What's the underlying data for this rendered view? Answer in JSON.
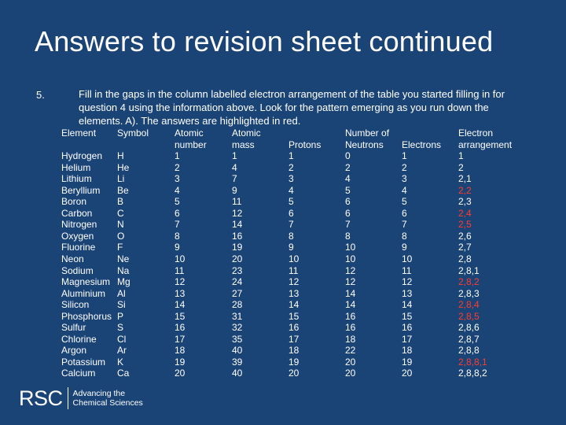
{
  "title": "Answers to revision sheet continued",
  "question": {
    "number": "5.",
    "text": "Fill in the gaps in the column labelled electron arrangement of the table you started filling in for question 4 using the information above.  Look for the pattern emerging as you run down the elements. A). The answers are highlighted in red."
  },
  "table": {
    "headers": {
      "element": "Element",
      "symbol": "Symbol",
      "atomic_number": [
        "Atomic",
        "number"
      ],
      "atomic_mass": [
        "Atomic",
        "mass"
      ],
      "protons": "Protons",
      "neutrons": [
        "Number of",
        "Neutrons"
      ],
      "electrons": "Electrons",
      "arrangement": [
        "Electron",
        "arrangement"
      ]
    },
    "rows": [
      {
        "element": "Hydrogen",
        "symbol": "H",
        "atomic_number": "1",
        "atomic_mass": "1",
        "protons": "1",
        "neutrons": "0",
        "electrons": "1",
        "arrangement": "1",
        "answer": false
      },
      {
        "element": "Helium",
        "symbol": "He",
        "atomic_number": "2",
        "atomic_mass": "4",
        "protons": "2",
        "neutrons": "2",
        "electrons": "2",
        "arrangement": "2",
        "answer": false
      },
      {
        "element": "Lithium",
        "symbol": "Li",
        "atomic_number": "3",
        "atomic_mass": "7",
        "protons": "3",
        "neutrons": "4",
        "electrons": "3",
        "arrangement": "2,1",
        "answer": false
      },
      {
        "element": "Beryllium",
        "symbol": "Be",
        "atomic_number": "4",
        "atomic_mass": "9",
        "protons": "4",
        "neutrons": "5",
        "electrons": "4",
        "arrangement": "2,2",
        "answer": true
      },
      {
        "element": "Boron",
        "symbol": "B",
        "atomic_number": "5",
        "atomic_mass": "11",
        "protons": "5",
        "neutrons": "6",
        "electrons": "5",
        "arrangement": "2,3",
        "answer": false
      },
      {
        "element": "Carbon",
        "symbol": "C",
        "atomic_number": "6",
        "atomic_mass": "12",
        "protons": "6",
        "neutrons": "6",
        "electrons": "6",
        "arrangement": "2,4",
        "answer": true
      },
      {
        "element": "Nitrogen",
        "symbol": "N",
        "atomic_number": "7",
        "atomic_mass": "14",
        "protons": "7",
        "neutrons": "7",
        "electrons": "7",
        "arrangement": "2,5",
        "answer": true
      },
      {
        "element": "Oxygen",
        "symbol": "O",
        "atomic_number": "8",
        "atomic_mass": "16",
        "protons": "8",
        "neutrons": "8",
        "electrons": "8",
        "arrangement": "2,6",
        "answer": false
      },
      {
        "element": "Fluorine",
        "symbol": "F",
        "atomic_number": "9",
        "atomic_mass": "19",
        "protons": "9",
        "neutrons": "10",
        "electrons": "9",
        "arrangement": "2,7",
        "answer": false
      },
      {
        "element": "Neon",
        "symbol": "Ne",
        "atomic_number": "10",
        "atomic_mass": "20",
        "protons": "10",
        "neutrons": "10",
        "electrons": "10",
        "arrangement": "2,8",
        "answer": false
      },
      {
        "element": "Sodium",
        "symbol": "Na",
        "atomic_number": "11",
        "atomic_mass": "23",
        "protons": "11",
        "neutrons": "12",
        "electrons": "11",
        "arrangement": "2,8,1",
        "answer": false
      },
      {
        "element": "Magnesium",
        "symbol": "Mg",
        "atomic_number": "12",
        "atomic_mass": "24",
        "protons": "12",
        "neutrons": "12",
        "electrons": "12",
        "arrangement": "2,8,2",
        "answer": true
      },
      {
        "element": "Aluminium",
        "symbol": "Al",
        "atomic_number": "13",
        "atomic_mass": "27",
        "protons": "13",
        "neutrons": "14",
        "electrons": "13",
        "arrangement": "2,8,3",
        "answer": false
      },
      {
        "element": "Silicon",
        "symbol": "Si",
        "atomic_number": "14",
        "atomic_mass": "28",
        "protons": "14",
        "neutrons": "14",
        "electrons": "14",
        "arrangement": "2,8,4",
        "answer": true
      },
      {
        "element": "Phosphorus",
        "symbol": "P",
        "atomic_number": "15",
        "atomic_mass": "31",
        "protons": "15",
        "neutrons": "16",
        "electrons": "15",
        "arrangement": "2,8,5",
        "answer": true
      },
      {
        "element": "Sulfur",
        "symbol": "S",
        "atomic_number": "16",
        "atomic_mass": "32",
        "protons": "16",
        "neutrons": "16",
        "electrons": "16",
        "arrangement": "2,8,6",
        "answer": false
      },
      {
        "element": "Chlorine",
        "symbol": "Cl",
        "atomic_number": "17",
        "atomic_mass": "35",
        "protons": "17",
        "neutrons": "18",
        "electrons": "17",
        "arrangement": "2,8,7",
        "answer": false
      },
      {
        "element": "Argon",
        "symbol": "Ar",
        "atomic_number": "18",
        "atomic_mass": "40",
        "protons": "18",
        "neutrons": "22",
        "electrons": "18",
        "arrangement": "2,8,8",
        "answer": false
      },
      {
        "element": "Potassium",
        "symbol": "K",
        "atomic_number": "19",
        "atomic_mass": "39",
        "protons": "19",
        "neutrons": "20",
        "electrons": "19",
        "arrangement": "2,8,8,1",
        "answer": true
      },
      {
        "element": "Calcium",
        "symbol": "Ca",
        "atomic_number": "20",
        "atomic_mass": "40",
        "protons": "20",
        "neutrons": "20",
        "electrons": "20",
        "arrangement": "2,8,8,2",
        "answer": false
      }
    ]
  },
  "logo": {
    "mark": "RSC",
    "tagline": [
      "Advancing the",
      "Chemical Sciences"
    ]
  },
  "colors": {
    "background": "#1b4476",
    "text": "#ffffff",
    "answer_highlight": "#ff3b2f"
  }
}
